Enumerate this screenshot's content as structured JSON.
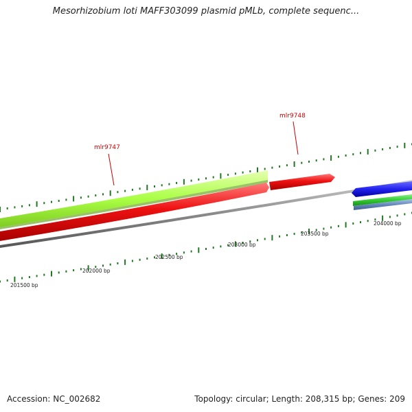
{
  "title": "Mesorhizobium loti MAFF303099 plasmid pMLb, complete sequenc...",
  "footer": {
    "accession": "Accession: NC_002682",
    "summary": "Topology: circular; Length: 208,315 bp; Genes: 209"
  },
  "genes": [
    {
      "name": "mlr9747",
      "color": "#ee1111",
      "strand": "forward"
    },
    {
      "name": "mlr9748",
      "color": "#ee1111",
      "strand": "forward"
    }
  ],
  "scale_labels": [
    "201500 bp",
    "202000 bp",
    "202500 bp",
    "203000 bp",
    "203500 bp",
    "204000 bp"
  ],
  "colors": {
    "cds": "#ee1111",
    "gene_green": "#aaff44",
    "blue_feature": "#2222ee",
    "green_feature": "#33cc33",
    "steel_feature": "#6688bb",
    "backbone": "#888888",
    "ticks": "#227722",
    "label": "#cc0000"
  }
}
